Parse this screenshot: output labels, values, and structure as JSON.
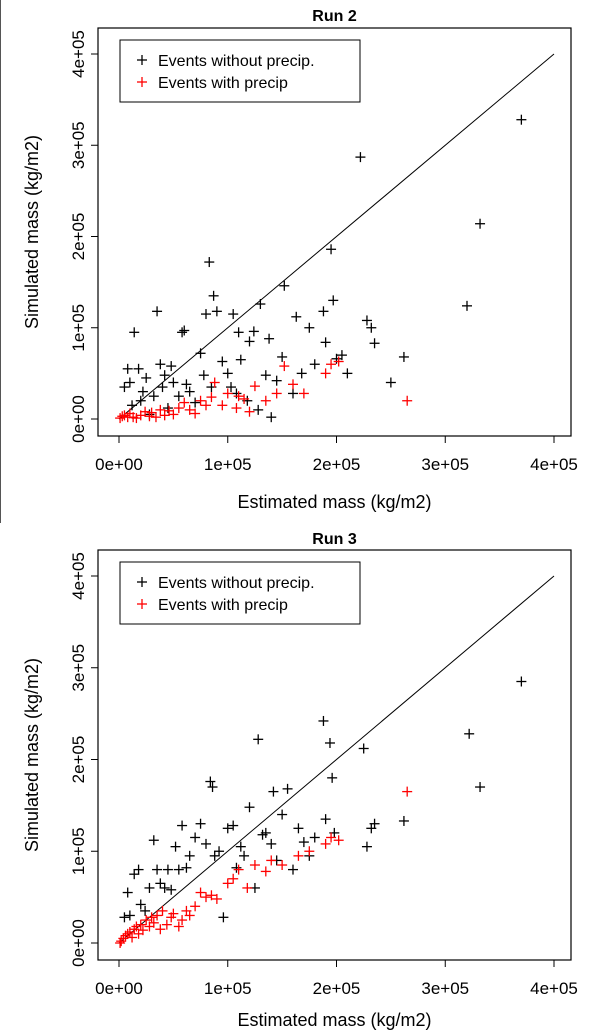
{
  "colors": {
    "no_precip": "#000000",
    "with_precip": "#ff0000",
    "axis": "#000000",
    "line": "#000000"
  },
  "chart_data": [
    {
      "type": "scatter",
      "title": "Run 2",
      "xlabel": "Estimated mass (kg/m2)",
      "ylabel": "Simulated mass (kg/m2)",
      "xlim": [
        0,
        400000
      ],
      "ylim": [
        0,
        400000
      ],
      "xticks": [
        "0e+00",
        "1e+05",
        "2e+05",
        "3e+05",
        "4e+05"
      ],
      "yticks": [
        "0e+00",
        "1e+05",
        "2e+05",
        "3e+05",
        "4e+05"
      ],
      "reference_line": "y = x",
      "legend": {
        "position": "top-left",
        "entries": [
          "Events without precip.",
          "Events with precip"
        ]
      },
      "series": [
        {
          "name": "Events without precip.",
          "color": "#000000",
          "points": [
            [
              5000,
              35000
            ],
            [
              8000,
              55000
            ],
            [
              10000,
              40000
            ],
            [
              12000,
              15000
            ],
            [
              14000,
              95000
            ],
            [
              18000,
              55000
            ],
            [
              20000,
              20000
            ],
            [
              22000,
              30000
            ],
            [
              25000,
              45000
            ],
            [
              28000,
              5000
            ],
            [
              32000,
              25000
            ],
            [
              35000,
              118000
            ],
            [
              38000,
              60000
            ],
            [
              40000,
              35000
            ],
            [
              42000,
              48000
            ],
            [
              45000,
              12000
            ],
            [
              48000,
              58000
            ],
            [
              50000,
              40000
            ],
            [
              55000,
              25000
            ],
            [
              58000,
              95000
            ],
            [
              60000,
              97000
            ],
            [
              62000,
              38000
            ],
            [
              65000,
              30000
            ],
            [
              70000,
              18000
            ],
            [
              75000,
              72000
            ],
            [
              78000,
              48000
            ],
            [
              80000,
              115000
            ],
            [
              83000,
              172000
            ],
            [
              85000,
              35000
            ],
            [
              87000,
              135000
            ],
            [
              90000,
              118000
            ],
            [
              95000,
              63000
            ],
            [
              100000,
              50000
            ],
            [
              103000,
              35000
            ],
            [
              105000,
              115000
            ],
            [
              108000,
              28000
            ],
            [
              110000,
              95000
            ],
            [
              112000,
              65000
            ],
            [
              118000,
              20000
            ],
            [
              120000,
              85000
            ],
            [
              124000,
              96000
            ],
            [
              128000,
              10000
            ],
            [
              130000,
              126000
            ],
            [
              135000,
              48000
            ],
            [
              138000,
              88000
            ],
            [
              140000,
              2000
            ],
            [
              145000,
              42000
            ],
            [
              150000,
              68000
            ],
            [
              152000,
              146000
            ],
            [
              160000,
              28000
            ],
            [
              163000,
              112000
            ],
            [
              168000,
              50000
            ],
            [
              175000,
              100000
            ],
            [
              180000,
              60000
            ],
            [
              188000,
              118000
            ],
            [
              190000,
              84000
            ],
            [
              195000,
              186000
            ],
            [
              197000,
              130000
            ],
            [
              200000,
              66000
            ],
            [
              205000,
              70000
            ],
            [
              222000,
              287000
            ],
            [
              228000,
              108000
            ],
            [
              232000,
              100000
            ],
            [
              235000,
              83000
            ],
            [
              262000,
              68000
            ],
            [
              320000,
              124000
            ],
            [
              332000,
              214000
            ],
            [
              370000,
              328000
            ],
            [
              210000,
              50000
            ],
            [
              250000,
              40000
            ]
          ]
        },
        {
          "name": "Events with precip",
          "color": "#ff0000",
          "points": [
            [
              1000,
              1000
            ],
            [
              3000,
              3000
            ],
            [
              5000,
              4000
            ],
            [
              8000,
              2000
            ],
            [
              10000,
              6000
            ],
            [
              13000,
              2000
            ],
            [
              16000,
              1000
            ],
            [
              20000,
              4000
            ],
            [
              24000,
              8000
            ],
            [
              28000,
              3000
            ],
            [
              30000,
              7000
            ],
            [
              34000,
              2000
            ],
            [
              38000,
              10000
            ],
            [
              42000,
              4000
            ],
            [
              46000,
              9000
            ],
            [
              50000,
              5000
            ],
            [
              55000,
              12000
            ],
            [
              60000,
              18000
            ],
            [
              65000,
              10000
            ],
            [
              70000,
              6000
            ],
            [
              75000,
              20000
            ],
            [
              80000,
              15000
            ],
            [
              85000,
              24000
            ],
            [
              88000,
              40000
            ],
            [
              95000,
              15000
            ],
            [
              100000,
              28000
            ],
            [
              108000,
              12000
            ],
            [
              115000,
              22000
            ],
            [
              125000,
              36000
            ],
            [
              135000,
              20000
            ],
            [
              145000,
              28000
            ],
            [
              152000,
              58000
            ],
            [
              160000,
              38000
            ],
            [
              170000,
              28000
            ],
            [
              190000,
              50000
            ],
            [
              195000,
              60000
            ],
            [
              202000,
              63000
            ],
            [
              265000,
              20000
            ],
            [
              120000,
              8000
            ],
            [
              110000,
              25000
            ]
          ]
        }
      ]
    },
    {
      "type": "scatter",
      "title": "Run 3",
      "xlabel": "Estimated mass (kg/m2)",
      "ylabel": "Simulated mass (kg/m2)",
      "xlim": [
        0,
        400000
      ],
      "ylim": [
        0,
        400000
      ],
      "xticks": [
        "0e+00",
        "1e+05",
        "2e+05",
        "3e+05",
        "4e+05"
      ],
      "yticks": [
        "0e+00",
        "1e+05",
        "2e+05",
        "3e+05",
        "4e+05"
      ],
      "reference_line": "y = x",
      "legend": {
        "position": "top-left",
        "entries": [
          "Events without precip.",
          "Events with precip"
        ]
      },
      "series": [
        {
          "name": "Events without precip.",
          "color": "#000000",
          "points": [
            [
              5000,
              28000
            ],
            [
              8000,
              55000
            ],
            [
              10000,
              30000
            ],
            [
              14000,
              75000
            ],
            [
              18000,
              80000
            ],
            [
              20000,
              42000
            ],
            [
              24000,
              35000
            ],
            [
              28000,
              60000
            ],
            [
              32000,
              112000
            ],
            [
              35000,
              80000
            ],
            [
              38000,
              65000
            ],
            [
              42000,
              60000
            ],
            [
              45000,
              80000
            ],
            [
              48000,
              58000
            ],
            [
              52000,
              105000
            ],
            [
              55000,
              80000
            ],
            [
              58000,
              128000
            ],
            [
              62000,
              82000
            ],
            [
              65000,
              95000
            ],
            [
              70000,
              115000
            ],
            [
              75000,
              130000
            ],
            [
              80000,
              108000
            ],
            [
              84000,
              176000
            ],
            [
              86000,
              170000
            ],
            [
              88000,
              95000
            ],
            [
              92000,
              100000
            ],
            [
              96000,
              28000
            ],
            [
              100000,
              125000
            ],
            [
              105000,
              128000
            ],
            [
              108000,
              82000
            ],
            [
              112000,
              105000
            ],
            [
              115000,
              95000
            ],
            [
              120000,
              148000
            ],
            [
              125000,
              60000
            ],
            [
              128000,
              222000
            ],
            [
              132000,
              118000
            ],
            [
              135000,
              120000
            ],
            [
              140000,
              108000
            ],
            [
              142000,
              165000
            ],
            [
              145000,
              90000
            ],
            [
              150000,
              140000
            ],
            [
              155000,
              168000
            ],
            [
              160000,
              80000
            ],
            [
              165000,
              125000
            ],
            [
              170000,
              110000
            ],
            [
              175000,
              95000
            ],
            [
              180000,
              115000
            ],
            [
              188000,
              242000
            ],
            [
              190000,
              135000
            ],
            [
              194000,
              218000
            ],
            [
              196000,
              180000
            ],
            [
              198000,
              120000
            ],
            [
              225000,
              212000
            ],
            [
              228000,
              105000
            ],
            [
              232000,
              125000
            ],
            [
              235000,
              130000
            ],
            [
              262000,
              133000
            ],
            [
              322000,
              228000
            ],
            [
              332000,
              170000
            ],
            [
              370000,
              285000
            ]
          ]
        },
        {
          "name": "Events with precip",
          "color": "#ff0000",
          "points": [
            [
              1000,
              0
            ],
            [
              2000,
              2000
            ],
            [
              4000,
              5000
            ],
            [
              6000,
              8000
            ],
            [
              8000,
              10000
            ],
            [
              10000,
              12000
            ],
            [
              12000,
              6000
            ],
            [
              14000,
              15000
            ],
            [
              16000,
              18000
            ],
            [
              18000,
              10000
            ],
            [
              20000,
              20000
            ],
            [
              22000,
              14000
            ],
            [
              25000,
              25000
            ],
            [
              28000,
              18000
            ],
            [
              30000,
              28000
            ],
            [
              32000,
              22000
            ],
            [
              35000,
              30000
            ],
            [
              38000,
              15000
            ],
            [
              40000,
              35000
            ],
            [
              44000,
              20000
            ],
            [
              48000,
              28000
            ],
            [
              50000,
              32000
            ],
            [
              55000,
              18000
            ],
            [
              58000,
              25000
            ],
            [
              62000,
              35000
            ],
            [
              65000,
              30000
            ],
            [
              70000,
              40000
            ],
            [
              75000,
              55000
            ],
            [
              80000,
              50000
            ],
            [
              85000,
              52000
            ],
            [
              90000,
              48000
            ],
            [
              100000,
              65000
            ],
            [
              105000,
              70000
            ],
            [
              110000,
              80000
            ],
            [
              118000,
              60000
            ],
            [
              125000,
              85000
            ],
            [
              135000,
              78000
            ],
            [
              140000,
              90000
            ],
            [
              150000,
              85000
            ],
            [
              165000,
              95000
            ],
            [
              175000,
              100000
            ],
            [
              190000,
              108000
            ],
            [
              195000,
              115000
            ],
            [
              202000,
              112000
            ],
            [
              265000,
              165000
            ]
          ]
        }
      ]
    }
  ]
}
